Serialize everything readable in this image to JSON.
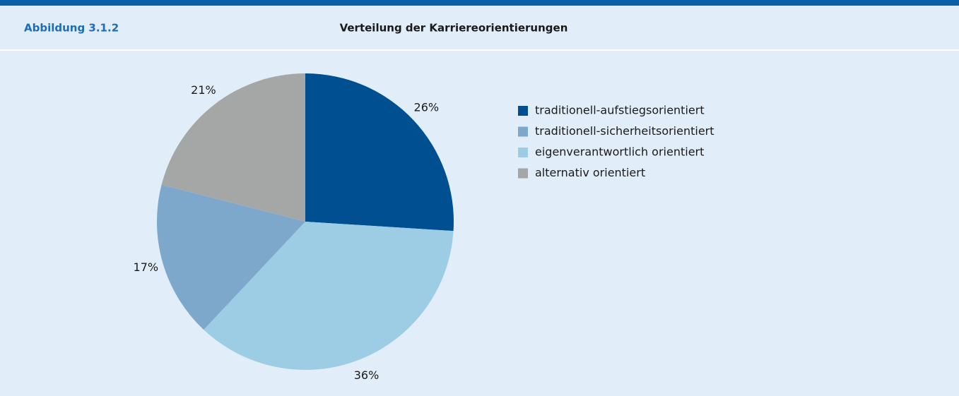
{
  "chart_data": {
    "type": "pie",
    "figure_number": "Abbildung 3.1.2",
    "title": "Verteilung der Karriereorientierungen",
    "categories": [
      "traditionell-aufstiegsorientiert",
      "traditionell-sicherheitsorientiert",
      "eigenverantwortlich orientiert",
      "alternativ orientiert"
    ],
    "values": [
      26,
      17,
      36,
      21
    ],
    "value_labels": [
      "26%",
      "17%",
      "36%",
      "21%"
    ],
    "colors": [
      "#004f91",
      "#7ea8cb",
      "#9dcde4",
      "#a5a7a6"
    ],
    "slice_order": [
      0,
      2,
      1,
      3
    ],
    "legend": "right"
  }
}
